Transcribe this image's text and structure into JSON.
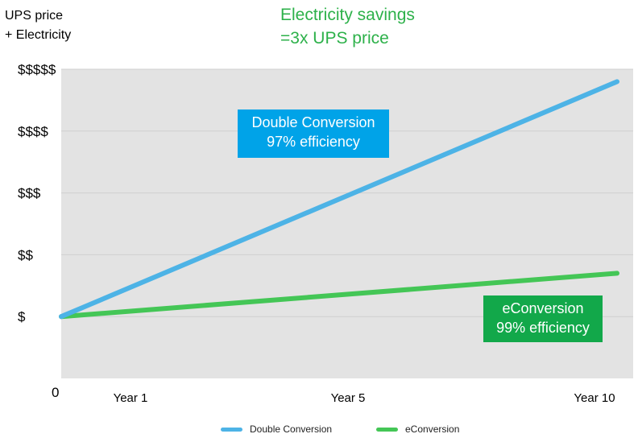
{
  "chart_data": {
    "type": "line",
    "ylabel": "UPS price\n+ Electricity",
    "title": "Electricity savings\n=3x UPS price",
    "y_tick_labels": [
      "0",
      "$",
      "$$",
      "$$$",
      "$$$$",
      "$$$$$"
    ],
    "x_tick_labels": [
      "Year 1",
      "Year 5",
      "Year 10"
    ],
    "ylim": [
      0,
      5
    ],
    "x_range": [
      0,
      10
    ],
    "grid": true,
    "legend_position": "bottom",
    "series": [
      {
        "name": "Double Conversion",
        "color": "#4db3e6",
        "points": [
          {
            "x": 0,
            "y": 1
          },
          {
            "x": 10,
            "y": 4.8
          }
        ]
      },
      {
        "name": "eConversion",
        "color": "#44c656",
        "points": [
          {
            "x": 0,
            "y": 1
          },
          {
            "x": 10,
            "y": 1.7
          }
        ]
      }
    ],
    "annotations": [
      {
        "text": "Double Conversion\n97% efficiency",
        "color": "#00a3e8"
      },
      {
        "text": "eConversion\n99% efficiency",
        "color": "#12a84a"
      }
    ]
  }
}
